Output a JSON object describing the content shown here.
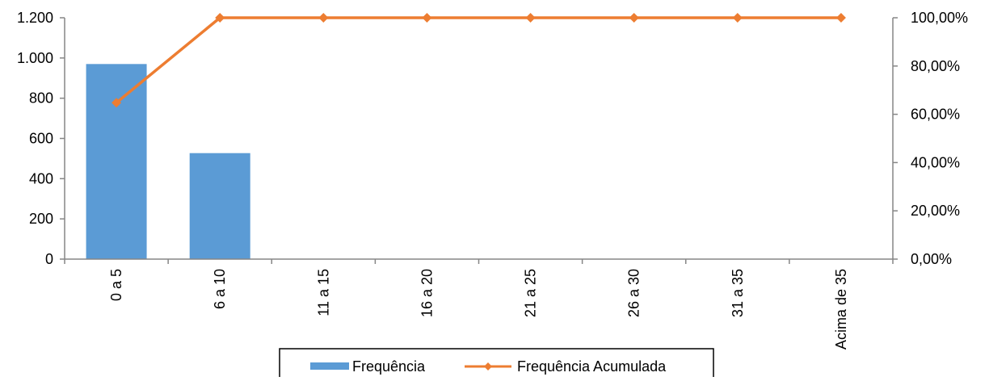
{
  "chart_data": {
    "type": "bar",
    "categories": [
      "0 a 5",
      "6 a 10",
      "11 a 15",
      "16 a 20",
      "21 a 25",
      "26 a 30",
      "31 a 35",
      "Acima de 35"
    ],
    "series": [
      {
        "name": "Frequência",
        "type": "bar",
        "axis": "left",
        "color": "#5B9BD5",
        "values": [
          970,
          527,
          0,
          0,
          0,
          0,
          0,
          0
        ]
      },
      {
        "name": "Frequência Acumulada",
        "type": "line",
        "axis": "right",
        "color": "#ED7D31",
        "marker": "diamond",
        "values": [
          0.648,
          1.0,
          1.0,
          1.0,
          1.0,
          1.0,
          1.0,
          1.0
        ]
      }
    ],
    "y_left": {
      "ylim": [
        0,
        1200
      ],
      "ticks": [
        0,
        200,
        400,
        600,
        800,
        1000,
        1200
      ],
      "tick_labels": [
        "0",
        "200",
        "400",
        "600",
        "800",
        "1.000",
        "1.200"
      ]
    },
    "y_right": {
      "ylim": [
        0,
        1
      ],
      "ticks": [
        0,
        0.2,
        0.4,
        0.6,
        0.8,
        1.0
      ],
      "tick_labels": [
        "0,00%",
        "20,00%",
        "40,00%",
        "60,00%",
        "80,00%",
        "100,00%"
      ]
    },
    "grid": false,
    "legend": {
      "placement": "bottom",
      "entries": [
        "Frequência",
        "Frequência Acumulada"
      ]
    },
    "title": "",
    "xlabel": "",
    "ylabel": ""
  }
}
